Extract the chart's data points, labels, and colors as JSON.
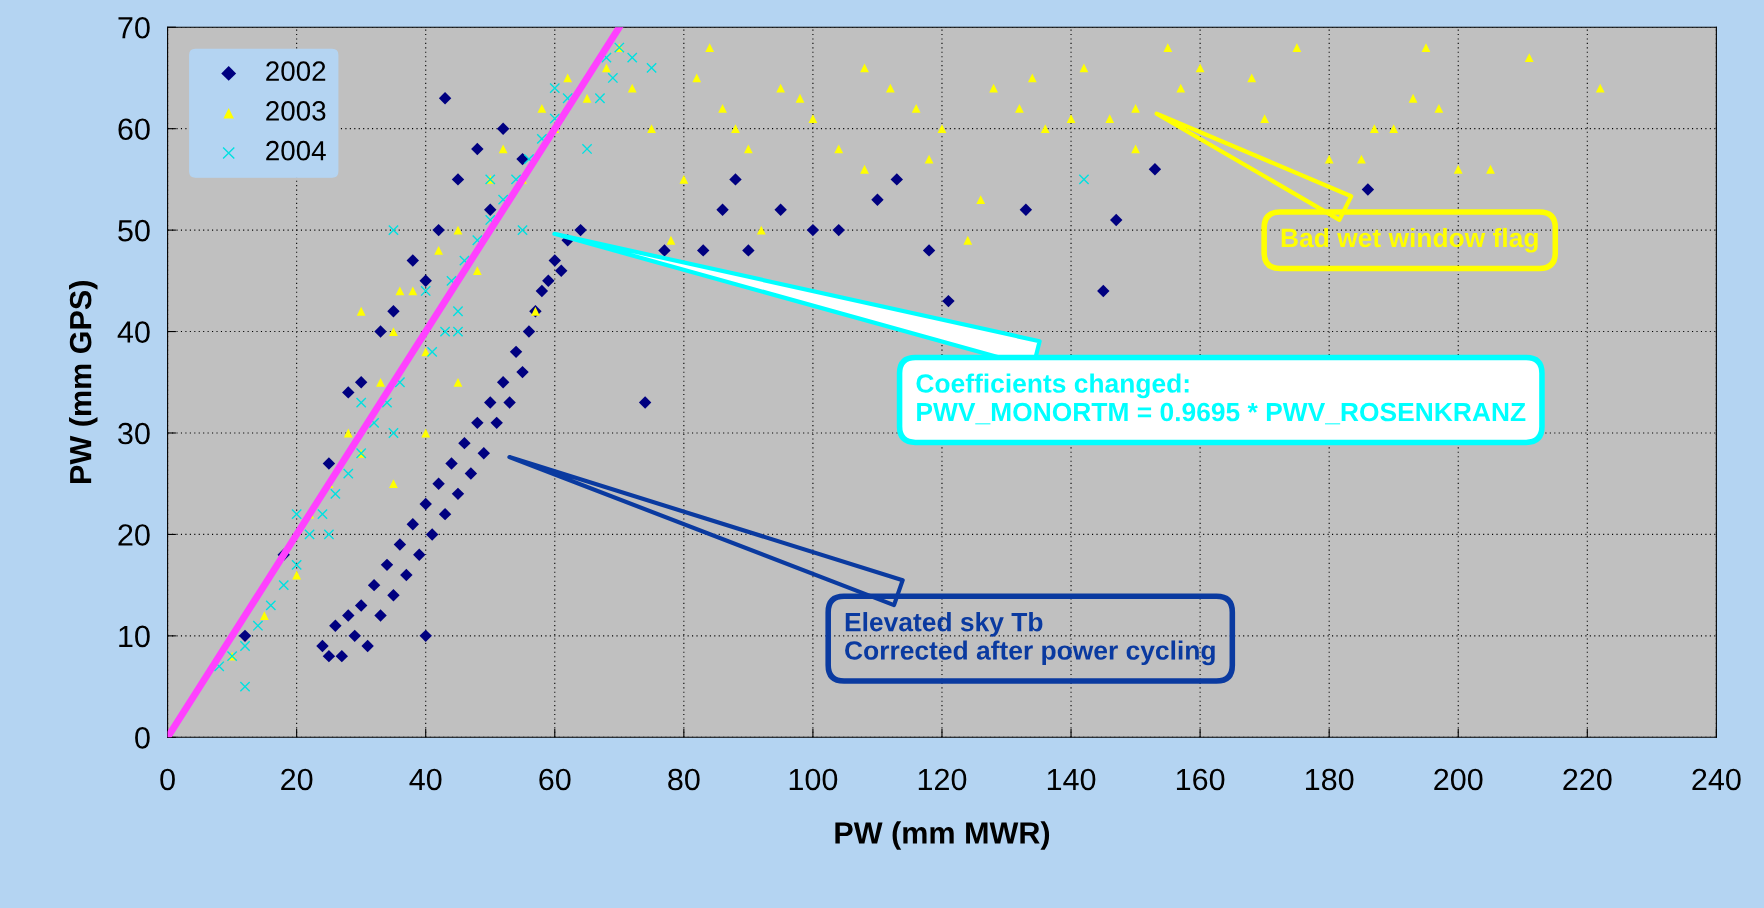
{
  "chart_data": {
    "type": "scatter",
    "xlabel": "PW (mm MWR)",
    "ylabel": "PW (mm GPS)",
    "xlim": [
      0,
      240
    ],
    "ylim": [
      0,
      70
    ],
    "xticks": [
      0,
      20,
      40,
      60,
      80,
      100,
      120,
      140,
      160,
      180,
      200,
      220,
      240
    ],
    "yticks": [
      0,
      10,
      20,
      30,
      40,
      50,
      60,
      70
    ],
    "grid": true,
    "legend": "top left",
    "series": [
      {
        "name": "2002",
        "color": "#000080",
        "marker": "diamond",
        "x": [
          24,
          25,
          26,
          27,
          28,
          29,
          30,
          31,
          32,
          33,
          34,
          35,
          36,
          37,
          38,
          39,
          40,
          41,
          42,
          43,
          44,
          45,
          46,
          47,
          48,
          49,
          50,
          51,
          52,
          53,
          54,
          55,
          56,
          57,
          58,
          59,
          60,
          61,
          62,
          64,
          40,
          74,
          77,
          12,
          18,
          25,
          30,
          35,
          38,
          42,
          45,
          48,
          52,
          43,
          28,
          33,
          40,
          50,
          55,
          86,
          88,
          95,
          100,
          104,
          110,
          113,
          118,
          121,
          133,
          145,
          147,
          153,
          186,
          83,
          90
        ],
        "values": [
          9,
          8,
          11,
          8,
          12,
          10,
          13,
          9,
          15,
          12,
          17,
          14,
          19,
          16,
          21,
          18,
          23,
          20,
          25,
          22,
          27,
          24,
          29,
          26,
          31,
          28,
          33,
          31,
          35,
          33,
          38,
          36,
          40,
          42,
          44,
          45,
          47,
          46,
          49,
          50,
          10,
          33,
          48,
          10,
          18,
          27,
          35,
          42,
          47,
          50,
          55,
          58,
          60,
          63,
          34,
          40,
          45,
          52,
          57,
          52,
          55,
          52,
          50,
          50,
          53,
          55,
          48,
          43,
          52,
          44,
          51,
          56,
          54,
          48,
          48
        ]
      },
      {
        "name": "2003",
        "color": "#ffff00",
        "marker": "triangle",
        "x": [
          10,
          15,
          20,
          22,
          25,
          28,
          30,
          33,
          35,
          38,
          40,
          42,
          45,
          48,
          50,
          52,
          55,
          58,
          60,
          62,
          65,
          68,
          70,
          72,
          75,
          35,
          40,
          45,
          36,
          30,
          57,
          78,
          80,
          82,
          84,
          86,
          88,
          90,
          92,
          95,
          98,
          100,
          104,
          108,
          112,
          116,
          120,
          124,
          128,
          132,
          134,
          136,
          140,
          142,
          146,
          150,
          155,
          157,
          160,
          168,
          170,
          175,
          180,
          185,
          187,
          190,
          193,
          195,
          197,
          200,
          205,
          211,
          222,
          108,
          118,
          126,
          150
        ],
        "values": [
          8,
          12,
          16,
          22,
          25,
          30,
          28,
          35,
          40,
          44,
          38,
          48,
          50,
          46,
          55,
          58,
          55,
          62,
          60,
          65,
          63,
          66,
          68,
          64,
          60,
          25,
          30,
          35,
          44,
          42,
          42,
          49,
          55,
          65,
          68,
          62,
          60,
          58,
          50,
          64,
          63,
          61,
          58,
          66,
          64,
          62,
          60,
          49,
          64,
          62,
          65,
          60,
          61,
          66,
          61,
          62,
          68,
          64,
          66,
          65,
          61,
          68,
          57,
          57,
          60,
          60,
          63,
          68,
          62,
          56,
          56,
          67,
          64,
          56,
          57,
          53,
          58
        ]
      },
      {
        "name": "2004",
        "color": "#00e0e0",
        "marker": "cross",
        "x": [
          8,
          10,
          12,
          14,
          16,
          18,
          20,
          22,
          24,
          26,
          28,
          30,
          32,
          34,
          36,
          41,
          43,
          45,
          44,
          46,
          48,
          50,
          52,
          54,
          56,
          58,
          60,
          62,
          67,
          69,
          68,
          70,
          72,
          75,
          20,
          30,
          40,
          50,
          60,
          25,
          35,
          45,
          55,
          65,
          35,
          142,
          12
        ],
        "values": [
          7,
          8,
          9,
          11,
          13,
          15,
          17,
          20,
          22,
          24,
          26,
          28,
          31,
          33,
          35,
          38,
          40,
          42,
          45,
          47,
          49,
          51,
          53,
          55,
          57,
          59,
          61,
          63,
          63,
          65,
          67,
          68,
          67,
          66,
          22,
          33,
          44,
          55,
          64,
          20,
          30,
          40,
          50,
          58,
          50,
          55,
          5
        ]
      },
      {
        "type": "line",
        "color": "#ff40ff",
        "x": [
          0,
          70
        ],
        "values": [
          0,
          70
        ]
      }
    ],
    "annotations": [
      "Bad wet window flag",
      "Coefficients changed:\nPWV_MONORTM = 0.9695 * PWV_ROSENKRANZ",
      "Elevated sky Tb\nCorrected after power cycling"
    ]
  }
}
